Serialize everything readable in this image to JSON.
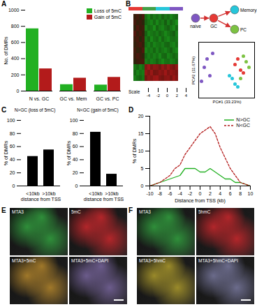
{
  "chart_data": [
    {
      "panel": "A",
      "type": "bar",
      "categories": [
        "N vs. GC",
        "GC vs. Mem",
        "GC vs. PC"
      ],
      "series": [
        {
          "name": "Loss of 5mC",
          "color": "#22b022",
          "values": [
            770,
            80,
            75
          ]
        },
        {
          "name": "Gain of 5mC",
          "color": "#b31b1b",
          "values": [
            275,
            160,
            170
          ]
        }
      ],
      "y_label": "No. of DMRs",
      "ylim": [
        0,
        1000
      ],
      "yticks": [
        0,
        200,
        400,
        600,
        800,
        1000
      ],
      "legend": "top-right"
    },
    {
      "panel": "B",
      "type": "heatmap",
      "tick_labels": false,
      "column_colors": [
        "#e53935",
        "#e53935",
        "#e53935",
        "#e53935",
        "#43a047",
        "#43a047",
        "#43a047",
        "#43a047",
        "#26c6da",
        "#26c6da",
        "#26c6da",
        "#26c6da",
        "#7e57c2",
        "#7e57c2",
        "#7e57c2",
        "#7e57c2"
      ],
      "rows": [
        [
          0.4,
          0.8,
          0.2,
          1.0,
          -2.3,
          -2.8,
          -2.0,
          -2.5,
          -2.2,
          -2.6,
          -1.9,
          -2.4,
          -2.1,
          -2.7,
          -2.3,
          -2.0
        ],
        [
          0.9,
          0.3,
          0.6,
          0.1,
          -2.0,
          -2.4,
          -2.7,
          -2.1,
          -2.8,
          -2.2,
          -2.5,
          -1.8,
          -2.6,
          -2.0,
          -2.4,
          -2.9
        ],
        [
          0.2,
          1.1,
          0.5,
          0.7,
          -2.6,
          -2.1,
          -2.3,
          -2.9,
          -2.0,
          -2.5,
          -2.7,
          -2.2,
          -1.9,
          -2.4,
          -2.8,
          -2.1
        ],
        [
          1.2,
          0.4,
          0.9,
          0.3,
          -1.9,
          -2.7,
          -2.4,
          -2.2,
          -2.5,
          -2.0,
          -2.3,
          -2.8,
          -2.4,
          -2.1,
          -1.8,
          -2.6
        ],
        [
          0.6,
          0.9,
          0.1,
          0.8,
          -2.4,
          -2.0,
          -2.8,
          -2.3,
          -2.1,
          -2.7,
          -2.0,
          -2.5,
          -2.8,
          -2.3,
          -2.2,
          -2.4
        ],
        [
          0.3,
          0.7,
          1.0,
          0.4,
          -2.2,
          -2.6,
          -2.1,
          -2.7,
          -2.4,
          -2.3,
          -2.6,
          -2.1,
          -2.0,
          -2.5,
          -2.7,
          -2.2
        ],
        [
          0.8,
          0.2,
          0.4,
          1.1,
          -2.7,
          -2.3,
          -2.5,
          -2.0,
          -2.6,
          -2.1,
          -2.4,
          -2.7,
          -2.3,
          -1.9,
          -2.5,
          -2.8
        ],
        [
          0.5,
          1.0,
          0.7,
          0.2,
          -2.1,
          -2.5,
          -2.2,
          -2.6,
          -2.3,
          -2.8,
          -2.1,
          -2.0,
          -2.7,
          -2.4,
          -2.0,
          -2.3
        ],
        [
          0.1,
          0.6,
          0.8,
          0.9,
          -2.5,
          -2.2,
          -2.6,
          -2.4,
          -1.9,
          -2.4,
          -2.8,
          -2.3,
          -2.2,
          -2.6,
          -2.4,
          -2.0
        ],
        [
          -2.4,
          -2.0,
          -2.6,
          -2.2,
          2.3,
          2.8,
          2.1,
          2.5,
          2.4,
          2.0,
          2.6,
          2.2,
          2.7,
          2.3,
          2.0,
          2.5
        ],
        [
          -2.1,
          -2.7,
          -2.3,
          -2.5,
          2.6,
          2.2,
          2.7,
          2.0,
          2.1,
          2.5,
          2.3,
          2.8,
          2.2,
          2.6,
          2.4,
          2.1
        ],
        [
          -2.6,
          -2.2,
          -2.0,
          -2.4,
          2.0,
          2.5,
          2.3,
          2.7,
          2.8,
          2.2,
          2.0,
          2.4,
          2.5,
          2.1,
          2.7,
          2.3
        ]
      ],
      "colorbar": {
        "label": "Scale",
        "range": [
          -4,
          4
        ],
        "ticks": [
          -4,
          -2,
          0,
          2,
          4
        ],
        "colors": [
          "#22c022",
          "#000000",
          "#e02020"
        ]
      }
    },
    {
      "type": "diagram",
      "nodes": [
        {
          "label": "naive",
          "color": "#7e57c2"
        },
        {
          "label": "GC",
          "color": "#e53935"
        },
        {
          "label": "Memory",
          "color": "#26c6da"
        },
        {
          "label": "PC",
          "color": "#7cc242"
        }
      ],
      "edges": [
        [
          0,
          1
        ],
        [
          1,
          2
        ],
        [
          1,
          3
        ]
      ]
    },
    {
      "type": "scatter",
      "tick_labels": false,
      "x_label": "PC#1 (33.23%)",
      "y_label": "PC#2 (11.67%)",
      "xlim": [
        -10,
        10
      ],
      "ylim": [
        -10,
        10
      ],
      "x": [
        -7,
        -8,
        -6,
        -9,
        -5,
        3,
        5,
        4,
        6,
        2,
        3,
        1,
        4,
        7,
        6,
        8,
        5
      ],
      "y": [
        4,
        1,
        -2,
        -4,
        6,
        2,
        0,
        4,
        -1,
        -3,
        -5,
        -2,
        -6,
        3,
        5,
        1,
        -3
      ],
      "colors": [
        "#7e57c2",
        "#7e57c2",
        "#7e57c2",
        "#7e57c2",
        "#7e57c2",
        "#e53935",
        "#e53935",
        "#e53935",
        "#e53935",
        "#26c6da",
        "#26c6da",
        "#26c6da",
        "#26c6da",
        "#7cc242",
        "#7cc242",
        "#7cc242",
        "#7cc242"
      ]
    },
    {
      "panel": "C",
      "type": "bar",
      "title": "N>GC (loss of 5mC)",
      "categories": [
        "<10kb",
        ">10kb"
      ],
      "values": [
        45,
        55
      ],
      "color": "#000000",
      "x_label": "distance from TSS",
      "y_label": "% of DMRs",
      "ylim": [
        0,
        100
      ],
      "yticks": [
        0,
        20,
        40,
        60,
        80,
        100
      ]
    },
    {
      "type": "bar",
      "title": "N<GC (gain of 5mC)",
      "categories": [
        "<10kb",
        ">10kb"
      ],
      "values": [
        82,
        18
      ],
      "color": "#000000",
      "x_label": "distance from TSS",
      "y_label": "% of DMRs",
      "ylim": [
        0,
        100
      ],
      "yticks": [
        0,
        20,
        40,
        60,
        80,
        100
      ]
    },
    {
      "panel": "D",
      "type": "line",
      "x": [
        -10,
        -9,
        -8,
        -7,
        -6,
        -5,
        -4,
        -3,
        -2,
        -1,
        0,
        1,
        2,
        3,
        4,
        5,
        6,
        7,
        8,
        9,
        10
      ],
      "series": [
        {
          "name": "N>GC",
          "color": "#22b022",
          "line_style": "solid",
          "values": [
            0,
            0.5,
            1,
            1.5,
            2,
            2.5,
            3,
            5,
            5,
            5,
            4,
            4,
            5,
            4,
            3,
            2,
            2,
            1,
            1,
            0.5,
            0
          ]
        },
        {
          "name": "N<GC",
          "color": "#b31b1b",
          "line_style": "dashed",
          "values": [
            0,
            0.5,
            1,
            2,
            3,
            5,
            6,
            9,
            11,
            13,
            15,
            16,
            17,
            15,
            11,
            8,
            5,
            3,
            1,
            0.5,
            0
          ]
        }
      ],
      "x_label": "Distance from TSS (kb)",
      "y_label": "% of DMRs",
      "xlim": [
        -10,
        10
      ],
      "xticks": [
        -10,
        -8,
        -6,
        -4,
        -2,
        0,
        2,
        4,
        6,
        8,
        10
      ],
      "ylim": [
        0,
        20
      ],
      "yticks": [
        0,
        5,
        10,
        15,
        20
      ],
      "legend": "top-right"
    },
    {
      "panel": "E",
      "type": "micrograph",
      "quadrants": [
        {
          "label": "MTA3",
          "color": "#2f8f3a"
        },
        {
          "label": "5mC",
          "color": "#b3262a"
        },
        {
          "label": "MTA3+5mC",
          "color": "#a0782a"
        },
        {
          "label": "MTA3+5mC+DAPI",
          "color": "#6c5c8c"
        }
      ]
    },
    {
      "panel": "F",
      "type": "micrograph",
      "quadrants": [
        {
          "label": "MTA3",
          "color": "#2f8f3a"
        },
        {
          "label": "5hmC",
          "color": "#b3262a"
        },
        {
          "label": "MTA3+5hmC",
          "color": "#9a8a2a"
        },
        {
          "label": "MTA3+5hmC+DAPI",
          "color": "#6c6c8c"
        }
      ]
    }
  ]
}
